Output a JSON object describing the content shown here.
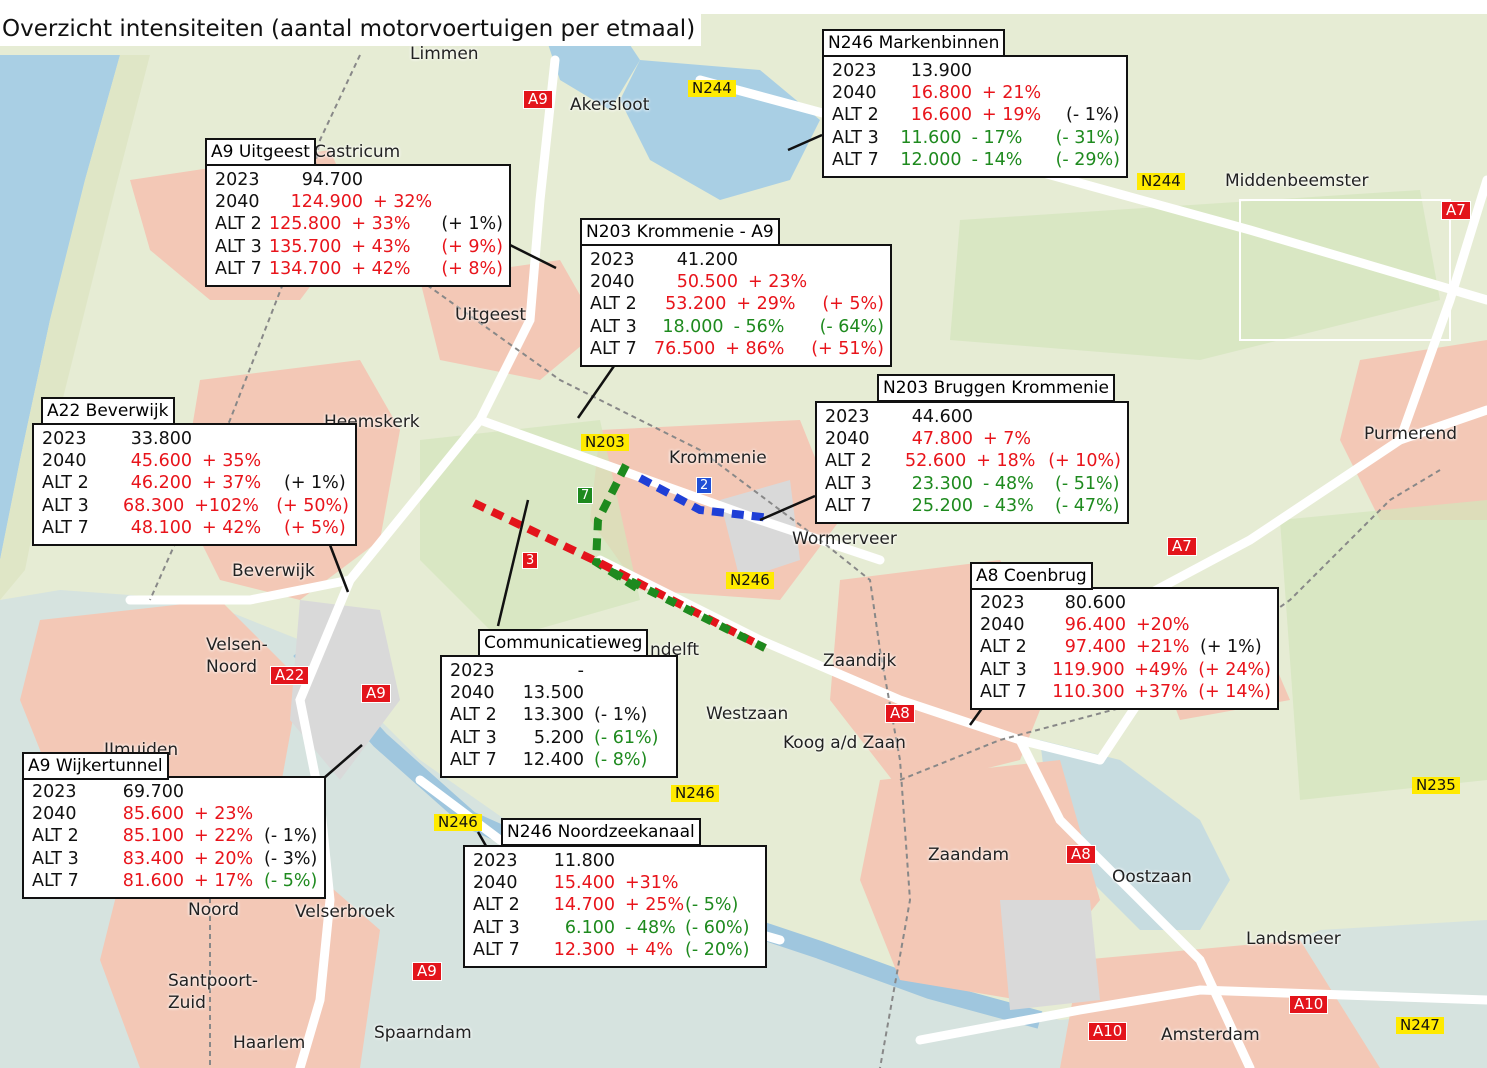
{
  "title": "Overzicht intensiteiten (aantal motorvoertuigen per etmaal)",
  "colors": {
    "up": "#e8141b",
    "down": "#1e8a1e",
    "neutral": "#111111",
    "road_shield": "#e3141b",
    "n_shield": "#ffea00"
  },
  "places": [
    {
      "id": "akersloot",
      "label": "Akersloot"
    },
    {
      "id": "castricum",
      "label": "Castricum"
    },
    {
      "id": "uitgeest",
      "label": "Uitgeest"
    },
    {
      "id": "heemskerk",
      "label": "Heemskerk"
    },
    {
      "id": "krommenie",
      "label": "Krommenie"
    },
    {
      "id": "wormerveer",
      "label": "Wormerveer"
    },
    {
      "id": "beverwijk",
      "label": "Beverwijk"
    },
    {
      "id": "velsen",
      "label": "Velsen-"
    },
    {
      "id": "noord",
      "label": "Noord"
    },
    {
      "id": "zaandijk",
      "label": "Zaandijk"
    },
    {
      "id": "westzaan",
      "label": "Westzaan"
    },
    {
      "id": "koog",
      "label": "Koog a/d Zaan"
    },
    {
      "id": "assendelft",
      "label": "ndelft"
    },
    {
      "id": "ijmuiden",
      "label": "IJmuiden"
    },
    {
      "id": "noord2",
      "label": "Noord"
    },
    {
      "id": "velserbroek",
      "label": "Velserbroek"
    },
    {
      "id": "santpoort",
      "label": "Santpoort-"
    },
    {
      "id": "zuid",
      "label": "Zuid"
    },
    {
      "id": "haarlem",
      "label": "Haarlem"
    },
    {
      "id": "spaarndam",
      "label": "Spaarndam"
    },
    {
      "id": "zaandam",
      "label": "Zaandam"
    },
    {
      "id": "oostzaan",
      "label": "Oostzaan"
    },
    {
      "id": "landsmeer",
      "label": "Landsmeer"
    },
    {
      "id": "amsterdam",
      "label": "Amsterdam"
    },
    {
      "id": "purmerend",
      "label": "Purmerend"
    },
    {
      "id": "middenbeemster",
      "label": "Middenbeemster"
    },
    {
      "id": "limmen",
      "label": "Limmen"
    }
  ],
  "shields": [
    {
      "id": "a9-akersloot",
      "label": "A9",
      "type": "a"
    },
    {
      "id": "n244-top",
      "label": "N244",
      "type": "n"
    },
    {
      "id": "n244-right",
      "label": "N244",
      "type": "n"
    },
    {
      "id": "a7-top",
      "label": "A7",
      "type": "a"
    },
    {
      "id": "n203",
      "label": "N203",
      "type": "n"
    },
    {
      "id": "a7-mid",
      "label": "A7",
      "type": "a"
    },
    {
      "id": "n246-mid",
      "label": "N246",
      "type": "n"
    },
    {
      "id": "a22",
      "label": "A22",
      "type": "a"
    },
    {
      "id": "a9-velsen",
      "label": "A9",
      "type": "a"
    },
    {
      "id": "a8-koog",
      "label": "A8",
      "type": "a"
    },
    {
      "id": "n246-low",
      "label": "N246",
      "type": "n"
    },
    {
      "id": "n246-left",
      "label": "N246",
      "type": "n"
    },
    {
      "id": "n235",
      "label": "N235",
      "type": "n"
    },
    {
      "id": "a8-zaandam",
      "label": "A8",
      "type": "a"
    },
    {
      "id": "a9-haarlem",
      "label": "A9",
      "type": "a"
    },
    {
      "id": "a10-a",
      "label": "A10",
      "type": "a"
    },
    {
      "id": "a10-b",
      "label": "A10",
      "type": "a"
    },
    {
      "id": "n247",
      "label": "N247",
      "type": "n"
    }
  ],
  "alternatives": [
    {
      "id": "alt2",
      "label": "2",
      "color": "blue"
    },
    {
      "id": "alt7",
      "label": "7",
      "color": "green"
    },
    {
      "id": "alt3",
      "label": "3",
      "color": "red"
    }
  ],
  "boxes": [
    {
      "id": "n246-markenbinnen",
      "title": "N246 Markenbinnen",
      "rows": [
        {
          "k": "2023",
          "v": "13.900",
          "vc": "black",
          "p": "",
          "pc": "black",
          "q": "",
          "qc": "black"
        },
        {
          "k": "2040",
          "v": "16.800",
          "vc": "red",
          "p": "+ 21%",
          "pc": "red",
          "q": "",
          "qc": "black"
        },
        {
          "k": "ALT 2",
          "v": "16.600",
          "vc": "red",
          "p": "+ 19%",
          "pc": "red",
          "q": "(- 1%)",
          "qc": "black"
        },
        {
          "k": "ALT 3",
          "v": "11.600",
          "vc": "green",
          "p": "- 17%",
          "pc": "green",
          "q": "(- 31%)",
          "qc": "green"
        },
        {
          "k": "ALT 7",
          "v": "12.000",
          "vc": "green",
          "p": "- 14%",
          "pc": "green",
          "q": "(- 29%)",
          "qc": "green"
        }
      ]
    },
    {
      "id": "a9-uitgeest",
      "title": "A9 Uitgeest",
      "rows": [
        {
          "k": "2023",
          "v": "94.700",
          "vc": "black",
          "p": "",
          "pc": "black",
          "q": "",
          "qc": "black"
        },
        {
          "k": "2040",
          "v": "124.900",
          "vc": "red",
          "p": "+ 32%",
          "pc": "red",
          "q": "",
          "qc": "black"
        },
        {
          "k": "ALT 2",
          "v": "125.800",
          "vc": "red",
          "p": "+ 33%",
          "pc": "red",
          "q": "(+ 1%)",
          "qc": "black"
        },
        {
          "k": "ALT 3",
          "v": "135.700",
          "vc": "red",
          "p": "+ 43%",
          "pc": "red",
          "q": "(+ 9%)",
          "qc": "red"
        },
        {
          "k": "ALT 7",
          "v": "134.700",
          "vc": "red",
          "p": "+ 42%",
          "pc": "red",
          "q": "(+ 8%)",
          "qc": "red"
        }
      ]
    },
    {
      "id": "n203-krommenie-a9",
      "title": "N203 Krommenie - A9",
      "rows": [
        {
          "k": "2023",
          "v": "41.200",
          "vc": "black",
          "p": "",
          "pc": "black",
          "q": "",
          "qc": "black"
        },
        {
          "k": "2040",
          "v": "50.500",
          "vc": "red",
          "p": "+ 23%",
          "pc": "red",
          "q": "",
          "qc": "black"
        },
        {
          "k": "ALT 2",
          "v": "53.200",
          "vc": "red",
          "p": "+ 29%",
          "pc": "red",
          "q": "(+ 5%)",
          "qc": "red"
        },
        {
          "k": "ALT 3",
          "v": "18.000",
          "vc": "green",
          "p": "- 56%",
          "pc": "green",
          "q": "(- 64%)",
          "qc": "green"
        },
        {
          "k": "ALT 7",
          "v": "76.500",
          "vc": "red",
          "p": "+ 86%",
          "pc": "red",
          "q": "(+ 51%)",
          "qc": "red"
        }
      ]
    },
    {
      "id": "a22-beverwijk",
      "title": "A22 Beverwijk",
      "rows": [
        {
          "k": "2023",
          "v": "33.800",
          "vc": "black",
          "p": "",
          "pc": "black",
          "q": "",
          "qc": "black"
        },
        {
          "k": "2040",
          "v": "45.600",
          "vc": "red",
          "p": "+ 35%",
          "pc": "red",
          "q": "",
          "qc": "black"
        },
        {
          "k": "ALT 2",
          "v": "46.200",
          "vc": "red",
          "p": "+ 37%",
          "pc": "red",
          "q": "(+ 1%)",
          "qc": "black"
        },
        {
          "k": "ALT 3",
          "v": "68.300",
          "vc": "red",
          "p": "+102%",
          "pc": "red",
          "q": "(+ 50%)",
          "qc": "red"
        },
        {
          "k": "ALT 7",
          "v": "48.100",
          "vc": "red",
          "p": "+ 42%",
          "pc": "red",
          "q": "(+ 5%)",
          "qc": "red"
        }
      ]
    },
    {
      "id": "n203-bruggen",
      "title": "N203 Bruggen Krommenie",
      "rows": [
        {
          "k": "2023",
          "v": "44.600",
          "vc": "black",
          "p": "",
          "pc": "black",
          "q": "",
          "qc": "black"
        },
        {
          "k": "2040",
          "v": "47.800",
          "vc": "red",
          "p": "+ 7%",
          "pc": "red",
          "q": "",
          "qc": "black"
        },
        {
          "k": "ALT 2",
          "v": "52.600",
          "vc": "red",
          "p": "+ 18%",
          "pc": "red",
          "q": "(+ 10%)",
          "qc": "red"
        },
        {
          "k": "ALT 3",
          "v": "23.300",
          "vc": "green",
          "p": "- 48%",
          "pc": "green",
          "q": "(- 51%)",
          "qc": "green"
        },
        {
          "k": "ALT 7",
          "v": "25.200",
          "vc": "green",
          "p": "- 43%",
          "pc": "green",
          "q": "(- 47%)",
          "qc": "green"
        }
      ]
    },
    {
      "id": "a8-coenbrug",
      "title": "A8 Coenbrug",
      "rows": [
        {
          "k": "2023",
          "v": "80.600",
          "vc": "black",
          "p": "",
          "pc": "black",
          "q": "",
          "qc": "black"
        },
        {
          "k": "2040",
          "v": "96.400",
          "vc": "red",
          "p": "+20%",
          "pc": "red",
          "q": "",
          "qc": "black"
        },
        {
          "k": "ALT 2",
          "v": "97.400",
          "vc": "red",
          "p": "+21%",
          "pc": "red",
          "q": "(+ 1%)",
          "qc": "black"
        },
        {
          "k": "ALT 3",
          "v": "119.900",
          "vc": "red",
          "p": "+49%",
          "pc": "red",
          "q": "(+ 24%)",
          "qc": "red"
        },
        {
          "k": "ALT 7",
          "v": "110.300",
          "vc": "red",
          "p": "+37%",
          "pc": "red",
          "q": "(+ 14%)",
          "qc": "red"
        }
      ]
    },
    {
      "id": "communicatieweg",
      "title": "Communicatieweg",
      "rows": [
        {
          "k": "2023",
          "v": "-",
          "vc": "black",
          "p": "",
          "pc": "black",
          "q": "",
          "qc": "black"
        },
        {
          "k": "2040",
          "v": "13.500",
          "vc": "black",
          "p": "",
          "pc": "black",
          "q": "",
          "qc": "black"
        },
        {
          "k": "ALT 2",
          "v": "13.300",
          "vc": "black",
          "p": "(- 1%)",
          "pc": "black",
          "q": "",
          "qc": "black"
        },
        {
          "k": "ALT 3",
          "v": "5.200",
          "vc": "black",
          "p": "(- 61%)",
          "pc": "green",
          "q": "",
          "qc": "black"
        },
        {
          "k": "ALT 7",
          "v": "12.400",
          "vc": "black",
          "p": "(- 8%)",
          "pc": "green",
          "q": "",
          "qc": "black"
        }
      ]
    },
    {
      "id": "a9-wijkertunnel",
      "title": "A9 Wijkertunnel",
      "rows": [
        {
          "k": "2023",
          "v": "69.700",
          "vc": "black",
          "p": "",
          "pc": "black",
          "q": "",
          "qc": "black"
        },
        {
          "k": "2040",
          "v": "85.600",
          "vc": "red",
          "p": "+ 23%",
          "pc": "red",
          "q": "",
          "qc": "black"
        },
        {
          "k": "ALT 2",
          "v": "85.100",
          "vc": "red",
          "p": "+ 22%",
          "pc": "red",
          "q": "(- 1%)",
          "qc": "black"
        },
        {
          "k": "ALT 3",
          "v": "83.400",
          "vc": "red",
          "p": "+ 20%",
          "pc": "red",
          "q": "(- 3%)",
          "qc": "black"
        },
        {
          "k": "ALT 7",
          "v": "81.600",
          "vc": "red",
          "p": "+ 17%",
          "pc": "red",
          "q": "(- 5%)",
          "qc": "green"
        }
      ]
    },
    {
      "id": "n246-noordzeekanaal",
      "title": "N246 Noordzeekanaal",
      "rows": [
        {
          "k": "2023",
          "v": "11.800",
          "vc": "black",
          "p": "",
          "pc": "black",
          "q": "",
          "qc": "black"
        },
        {
          "k": "2040",
          "v": "15.400",
          "vc": "red",
          "p": "+31%",
          "pc": "red",
          "q": "",
          "qc": "black"
        },
        {
          "k": "ALT 2",
          "v": "14.700",
          "vc": "red",
          "p": "+ 25%",
          "pc": "red",
          "q": "(- 5%)",
          "qc": "green"
        },
        {
          "k": "ALT 3",
          "v": "6.100",
          "vc": "green",
          "p": "- 48%",
          "pc": "green",
          "q": "(- 60%)",
          "qc": "green"
        },
        {
          "k": "ALT 7",
          "v": "12.300",
          "vc": "red",
          "p": "+ 4%",
          "pc": "red",
          "q": "(- 20%)",
          "qc": "green"
        }
      ]
    }
  ]
}
